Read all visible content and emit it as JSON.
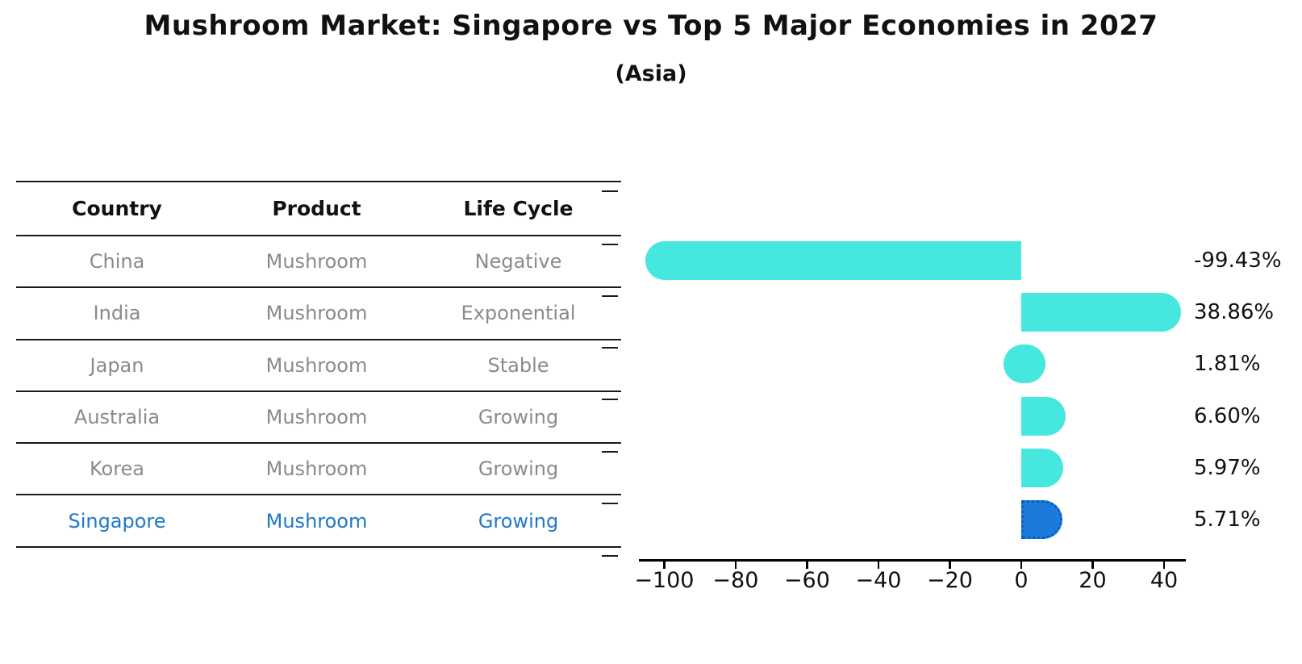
{
  "title": "Mushroom Market: Singapore vs Top 5 Major Economies in 2027",
  "subtitle": "(Asia)",
  "table": {
    "headers": [
      "Country",
      "Product",
      "Life Cycle"
    ],
    "rows": [
      {
        "country": "China",
        "product": "Mushroom",
        "life_cycle": "Negative",
        "highlight": false
      },
      {
        "country": "India",
        "product": "Mushroom",
        "life_cycle": "Exponential",
        "highlight": false
      },
      {
        "country": "Japan",
        "product": "Mushroom",
        "life_cycle": "Stable",
        "highlight": false
      },
      {
        "country": "Australia",
        "product": "Mushroom",
        "life_cycle": "Growing",
        "highlight": false
      },
      {
        "country": "Korea",
        "product": "Mushroom",
        "life_cycle": "Growing",
        "highlight": false
      },
      {
        "country": "Singapore",
        "product": "Mushroom",
        "life_cycle": "Growing",
        "highlight": true
      }
    ]
  },
  "chart_data": {
    "type": "bar",
    "orientation": "horizontal",
    "title": "Mushroom Market: Singapore vs Top 5 Major Economies in 2027",
    "subtitle": "(Asia)",
    "categories": [
      "China",
      "India",
      "Japan",
      "Australia",
      "Korea",
      "Singapore"
    ],
    "values": [
      -99.43,
      38.86,
      1.81,
      6.6,
      5.97,
      5.71
    ],
    "value_labels": [
      "-99.43%",
      "38.86%",
      "1.81%",
      "6.60%",
      "5.97%",
      "5.71%"
    ],
    "unit": "%",
    "x_ticks": [
      -100,
      -80,
      -60,
      -40,
      -20,
      0,
      20,
      40
    ],
    "x_tick_labels": [
      "−100",
      "−80",
      "−60",
      "−40",
      "−20",
      "0",
      "20",
      "40"
    ],
    "xlim": [
      -107.1,
      46.1
    ],
    "grid": false,
    "legend": false,
    "highlight_index": 5,
    "bar_color": "#45E7DE",
    "highlight_bar_color": "#1B7BDA",
    "highlight_border_color": "#0A5DC2"
  },
  "colors": {
    "background": "#ffffff",
    "text": "#111111",
    "muted_text": "#8a8a8a",
    "highlight_text": "#2078C8",
    "axis": "#000000"
  }
}
